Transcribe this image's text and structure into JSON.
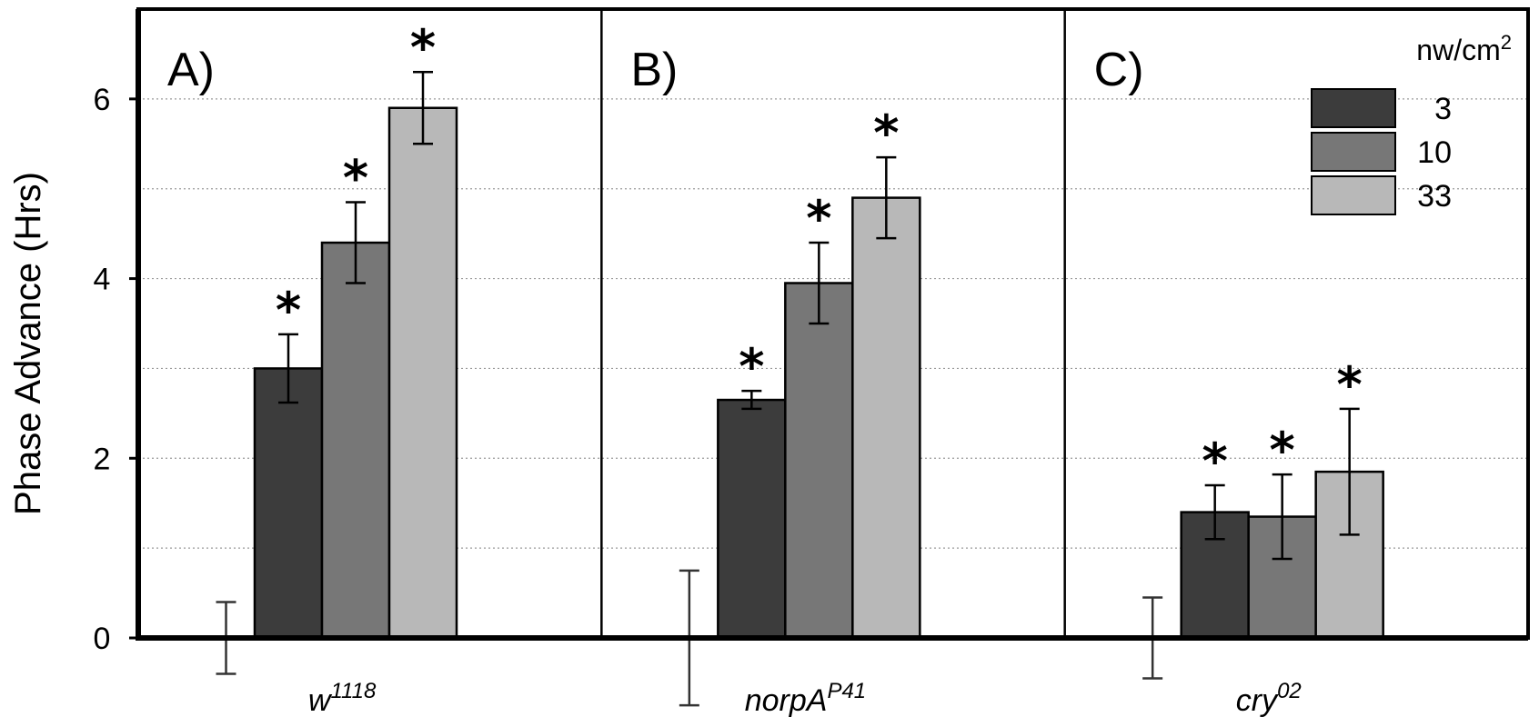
{
  "chart_data": {
    "type": "bar",
    "ylabel": "Phase Advance (Hrs)",
    "ylim": [
      0,
      7
    ],
    "yticks": [
      0,
      2,
      4,
      6
    ],
    "grid": "horizontal dotted, every 1 hr",
    "legend": {
      "title": "nw/cm",
      "title_superscript": "2",
      "placement": "top-right",
      "entries": [
        "3",
        "10",
        "33"
      ]
    },
    "series_colors": [
      "#3c3c3c",
      "#777777",
      "#b8b8b8"
    ],
    "panels": [
      {
        "label": "A)",
        "genotype": "w",
        "genotype_superscript": "1118",
        "control": {
          "value": 0,
          "error": 0.4
        },
        "values": [
          3.0,
          4.4,
          5.9
        ],
        "errors": [
          0.38,
          0.45,
          0.4
        ],
        "significant": [
          "*",
          "*",
          "*"
        ]
      },
      {
        "label": "B)",
        "genotype": "norpA",
        "genotype_superscript": "P41",
        "control": {
          "value": 0,
          "error": 0.75
        },
        "values": [
          2.65,
          3.95,
          4.9
        ],
        "errors": [
          0.1,
          0.45,
          0.45
        ],
        "significant": [
          "*",
          "*",
          "*"
        ]
      },
      {
        "label": "C)",
        "genotype": "cry",
        "genotype_superscript": "02",
        "control": {
          "value": 0,
          "error": 0.45
        },
        "values": [
          1.4,
          1.35,
          1.85
        ],
        "errors": [
          0.3,
          0.47,
          0.7
        ],
        "significant": [
          "*",
          "*",
          "*"
        ]
      }
    ]
  }
}
